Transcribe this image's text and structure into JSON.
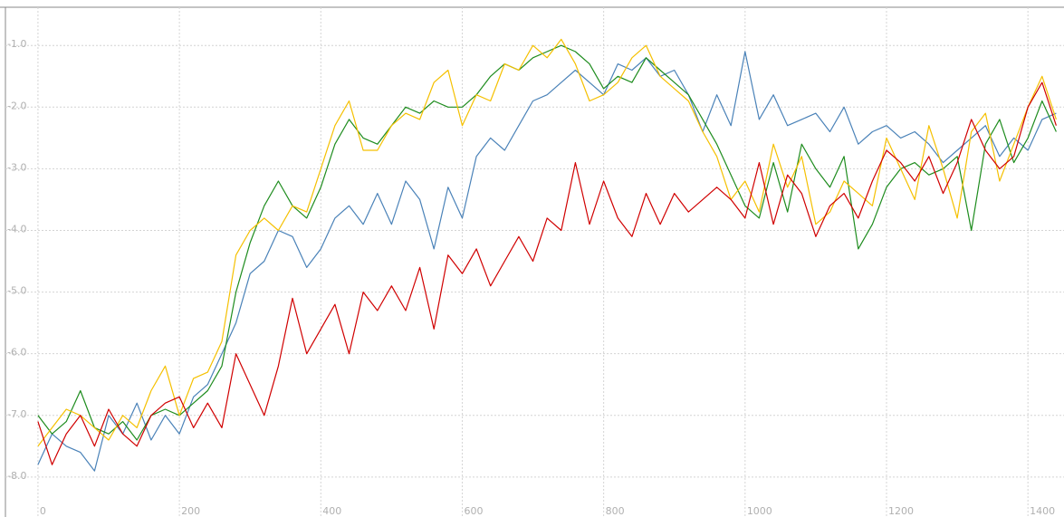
{
  "chart_data": {
    "type": "line",
    "x": [
      0,
      20,
      40,
      60,
      80,
      100,
      120,
      140,
      160,
      180,
      200,
      220,
      240,
      260,
      280,
      300,
      320,
      340,
      360,
      380,
      400,
      420,
      440,
      460,
      480,
      500,
      520,
      540,
      560,
      580,
      600,
      620,
      640,
      660,
      680,
      700,
      720,
      740,
      760,
      780,
      800,
      820,
      840,
      860,
      880,
      900,
      920,
      940,
      960,
      980,
      1000,
      1020,
      1040,
      1060,
      1080,
      1100,
      1120,
      1140,
      1160,
      1180,
      1200,
      1220,
      1240,
      1260,
      1280,
      1300,
      1320,
      1340,
      1360,
      1380,
      1400,
      1420,
      1440
    ],
    "series": [
      {
        "color": "#4a82b8",
        "values": [
          -7.8,
          -7.3,
          -7.5,
          -7.6,
          -7.9,
          -7.0,
          -7.3,
          -6.8,
          -7.4,
          -7.0,
          -7.3,
          -6.7,
          -6.5,
          -6.0,
          -5.5,
          -4.7,
          -4.5,
          -4.0,
          -4.1,
          -4.6,
          -4.3,
          -3.8,
          -3.6,
          -3.9,
          -3.4,
          -3.9,
          -3.2,
          -3.5,
          -4.3,
          -3.3,
          -3.8,
          -2.8,
          -2.5,
          -2.7,
          -2.3,
          -1.9,
          -1.8,
          -1.6,
          -1.4,
          -1.6,
          -1.8,
          -1.3,
          -1.4,
          -1.2,
          -1.5,
          -1.4,
          -1.8,
          -2.4,
          -1.8,
          -2.3,
          -1.1,
          -2.2,
          -1.8,
          -2.3,
          -2.2,
          -2.1,
          -2.4,
          -2.0,
          -2.6,
          -2.4,
          -2.3,
          -2.5,
          -2.4,
          -2.6,
          -2.9,
          -2.7,
          -2.5,
          -2.3,
          -2.8,
          -2.5,
          -2.7,
          -2.2,
          -2.1
        ]
      },
      {
        "color": "#1e8c1e",
        "values": [
          -7.0,
          -7.3,
          -7.1,
          -6.6,
          -7.2,
          -7.3,
          -7.1,
          -7.4,
          -7.0,
          -6.9,
          -7.0,
          -6.8,
          -6.6,
          -6.2,
          -5.0,
          -4.2,
          -3.6,
          -3.2,
          -3.6,
          -3.8,
          -3.3,
          -2.6,
          -2.2,
          -2.5,
          -2.6,
          -2.3,
          -2.0,
          -2.1,
          -1.9,
          -2.0,
          -2.0,
          -1.8,
          -1.5,
          -1.3,
          -1.4,
          -1.2,
          -1.1,
          -1.0,
          -1.1,
          -1.3,
          -1.7,
          -1.5,
          -1.6,
          -1.2,
          -1.4,
          -1.6,
          -1.8,
          -2.2,
          -2.6,
          -3.1,
          -3.6,
          -3.8,
          -2.9,
          -3.7,
          -2.6,
          -3.0,
          -3.3,
          -2.8,
          -4.3,
          -3.9,
          -3.3,
          -3.0,
          -2.9,
          -3.1,
          -3.0,
          -2.8,
          -4.0,
          -2.6,
          -2.2,
          -2.9,
          -2.5,
          -1.9,
          -2.4
        ]
      },
      {
        "color": "#f5c000",
        "values": [
          -7.5,
          -7.2,
          -6.9,
          -7.0,
          -7.2,
          -7.4,
          -7.0,
          -7.2,
          -6.6,
          -6.2,
          -7.0,
          -6.4,
          -6.3,
          -5.8,
          -4.4,
          -4.0,
          -3.8,
          -4.0,
          -3.6,
          -3.7,
          -3.0,
          -2.3,
          -1.9,
          -2.7,
          -2.7,
          -2.3,
          -2.1,
          -2.2,
          -1.6,
          -1.4,
          -2.3,
          -1.8,
          -1.9,
          -1.3,
          -1.4,
          -1.0,
          -1.2,
          -0.9,
          -1.3,
          -1.9,
          -1.8,
          -1.6,
          -1.2,
          -1.0,
          -1.5,
          -1.7,
          -1.9,
          -2.4,
          -2.8,
          -3.5,
          -3.2,
          -3.7,
          -2.6,
          -3.3,
          -2.8,
          -3.9,
          -3.7,
          -3.2,
          -3.4,
          -3.6,
          -2.5,
          -3.0,
          -3.5,
          -2.3,
          -3.0,
          -3.8,
          -2.4,
          -2.1,
          -3.2,
          -2.6,
          -2.0,
          -1.5,
          -2.2
        ]
      },
      {
        "color": "#d00000",
        "values": [
          -7.1,
          -7.8,
          -7.3,
          -7.0,
          -7.5,
          -6.9,
          -7.3,
          -7.5,
          -7.0,
          -6.8,
          -6.7,
          -7.2,
          -6.8,
          -7.2,
          -6.0,
          -6.5,
          -7.0,
          -6.2,
          -5.1,
          -6.0,
          -5.6,
          -5.2,
          -6.0,
          -5.0,
          -5.3,
          -4.9,
          -5.3,
          -4.6,
          -5.6,
          -4.4,
          -4.7,
          -4.3,
          -4.9,
          -4.5,
          -4.1,
          -4.5,
          -3.8,
          -4.0,
          -2.9,
          -3.9,
          -3.2,
          -3.8,
          -4.1,
          -3.4,
          -3.9,
          -3.4,
          -3.7,
          -3.5,
          -3.3,
          -3.5,
          -3.8,
          -2.9,
          -3.9,
          -3.1,
          -3.4,
          -4.1,
          -3.6,
          -3.4,
          -3.8,
          -3.2,
          -2.7,
          -2.9,
          -3.2,
          -2.8,
          -3.4,
          -2.9,
          -2.2,
          -2.7,
          -3.0,
          -2.8,
          -2.0,
          -1.6,
          -2.3
        ]
      }
    ],
    "xlim": [
      -46,
      1451
    ],
    "ylim": [
      -8.56,
      -0.38
    ],
    "xticks": [
      0,
      200,
      400,
      600,
      800,
      1000,
      1200,
      1400
    ],
    "yticks": [
      {
        "value": -1,
        "label": "-1.0"
      },
      {
        "value": -2,
        "label": "-2.0"
      },
      {
        "value": -3,
        "label": "-3.0"
      },
      {
        "value": -4,
        "label": "-4.0"
      },
      {
        "value": -5,
        "label": "-5.0"
      },
      {
        "value": -6,
        "label": "-6.0"
      },
      {
        "value": -7,
        "label": "-7.0"
      },
      {
        "value": -8,
        "label": "-8.0"
      }
    ],
    "grid": true
  }
}
